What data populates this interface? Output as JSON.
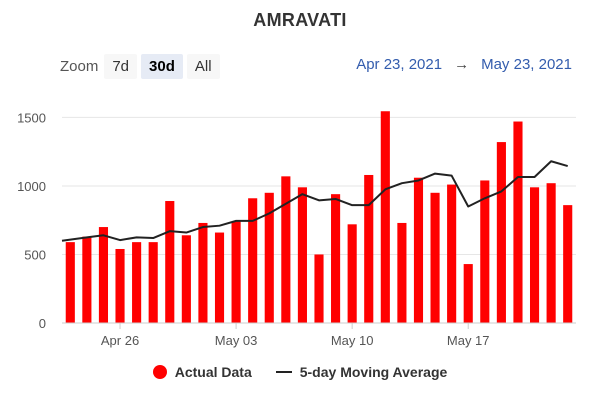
{
  "title": "AMRAVATI",
  "zoom": {
    "label": "Zoom",
    "options": [
      "7d",
      "30d",
      "All"
    ],
    "selected": "30d"
  },
  "range": {
    "from": "Apr 23, 2021",
    "arrow": "→",
    "to": "May 23, 2021"
  },
  "legend": {
    "actual": "Actual Data",
    "average": "5-day Moving Average"
  },
  "colors": {
    "bar": "#ff0000",
    "line": "#222222",
    "grid": "#e6e6e6"
  },
  "chart_data": {
    "type": "bar",
    "x": [
      "2021-04-23",
      "2021-04-24",
      "2021-04-25",
      "2021-04-26",
      "2021-04-27",
      "2021-04-28",
      "2021-04-29",
      "2021-04-30",
      "2021-05-01",
      "2021-05-02",
      "2021-05-03",
      "2021-05-04",
      "2021-05-05",
      "2021-05-06",
      "2021-05-07",
      "2021-05-08",
      "2021-05-09",
      "2021-05-10",
      "2021-05-11",
      "2021-05-12",
      "2021-05-13",
      "2021-05-14",
      "2021-05-15",
      "2021-05-16",
      "2021-05-17",
      "2021-05-18",
      "2021-05-19",
      "2021-05-20",
      "2021-05-21",
      "2021-05-22",
      "2021-05-23"
    ],
    "series": [
      {
        "name": "Actual Data",
        "type": "bar",
        "values": [
          590,
          630,
          700,
          540,
          590,
          590,
          890,
          640,
          730,
          660,
          740,
          910,
          950,
          1070,
          990,
          500,
          940,
          720,
          1080,
          1545,
          730,
          1060,
          950,
          1010,
          430,
          1040,
          1320,
          1470,
          990,
          1020,
          860
        ]
      },
      {
        "name": "5-day Moving Average",
        "type": "line",
        "values": [
          600,
          625,
          640,
          605,
          625,
          620,
          670,
          660,
          700,
          710,
          745,
          745,
          800,
          870,
          940,
          895,
          905,
          860,
          860,
          975,
          1020,
          1040,
          1090,
          1075,
          850,
          910,
          960,
          1065,
          1065,
          1180,
          1145
        ]
      }
    ],
    "x_ticks": [
      {
        "label": "Apr 26",
        "index": 3
      },
      {
        "label": "May 03",
        "index": 10
      },
      {
        "label": "May 10",
        "index": 17
      },
      {
        "label": "May 17",
        "index": 24
      }
    ],
    "y_ticks": [
      0,
      500,
      1000,
      1500
    ],
    "ylim": [
      0,
      1700
    ],
    "grid": true,
    "legend_position": "bottom"
  }
}
